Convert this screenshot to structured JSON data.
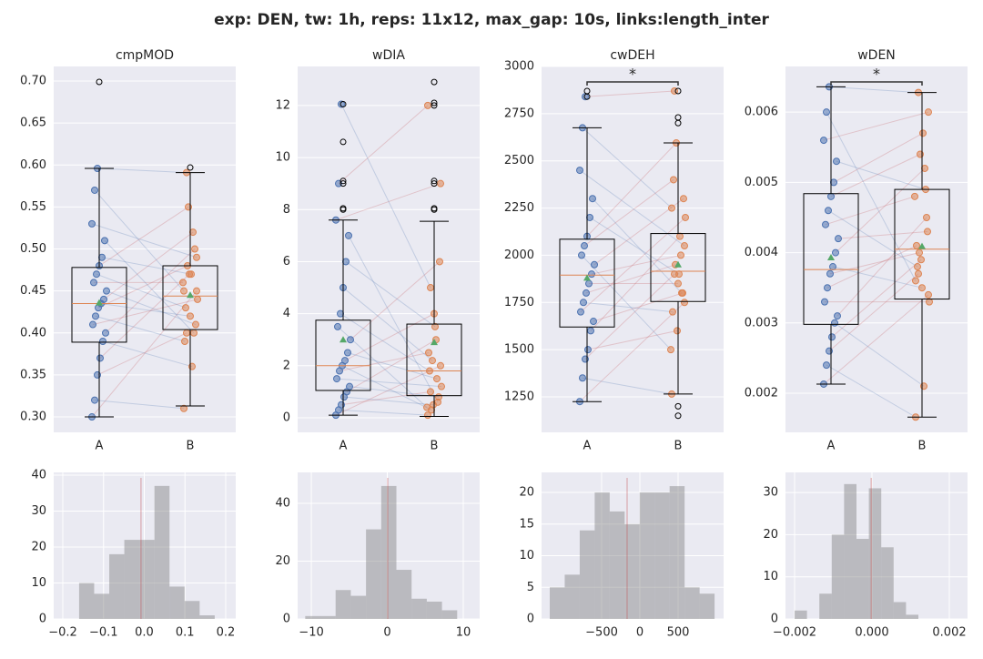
{
  "title": "exp: DEN, tw: 1h, reps: 11x12, max_gap: 10s, links:length_inter",
  "chart_data": [
    {
      "type": "box",
      "title": "cmpMOD",
      "categories": [
        "A",
        "B"
      ],
      "ylim": [
        0.2816,
        0.7174
      ],
      "yticks": [
        {
          "value": 0.3,
          "label": "0.30"
        },
        {
          "value": 0.35,
          "label": "0.35"
        },
        {
          "value": 0.4,
          "label": "0.40"
        },
        {
          "value": 0.45,
          "label": "0.45"
        },
        {
          "value": 0.5,
          "label": "0.50"
        },
        {
          "value": 0.55,
          "label": "0.55"
        },
        {
          "value": 0.6,
          "label": "0.60"
        },
        {
          "value": 0.65,
          "label": "0.65"
        },
        {
          "value": 0.7,
          "label": "0.70"
        }
      ],
      "boxes": [
        {
          "q1": 0.389,
          "median": 0.435,
          "q3": 0.478,
          "whislo": 0.3,
          "whishi": 0.596,
          "mean": 0.436,
          "outliers": [
            0.699
          ]
        },
        {
          "q1": 0.404,
          "median": 0.444,
          "q3": 0.48,
          "whislo": 0.313,
          "whishi": 0.591,
          "mean": 0.445,
          "outliers": [
            0.597
          ]
        }
      ],
      "series": [
        {
          "color": "#4c72b0",
          "values": [
            0.3,
            0.32,
            0.35,
            0.37,
            0.39,
            0.4,
            0.41,
            0.42,
            0.43,
            0.435,
            0.44,
            0.45,
            0.46,
            0.47,
            0.48,
            0.49,
            0.51,
            0.53,
            0.57,
            0.596
          ]
        },
        {
          "color": "#dd8452",
          "values": [
            0.45,
            0.31,
            0.4,
            0.47,
            0.36,
            0.5,
            0.44,
            0.39,
            0.48,
            0.42,
            0.52,
            0.41,
            0.46,
            0.43,
            0.55,
            0.47,
            0.4,
            0.49,
            0.45,
            0.591
          ]
        }
      ],
      "pair_colors": {
        "up": "#c44e52",
        "down": "#4c72b0"
      }
    },
    {
      "type": "box",
      "title": "wDIA",
      "categories": [
        "A",
        "B"
      ],
      "ylim": [
        -0.56,
        13.5
      ],
      "yticks": [
        0,
        2,
        4,
        6,
        8,
        10,
        12
      ],
      "boxes": [
        {
          "q1": 1.05,
          "median": 2.0,
          "q3": 3.75,
          "whislo": 0.1,
          "whishi": 7.6,
          "mean": 3.0,
          "outliers": [
            8,
            8.05,
            9,
            9.1,
            10.6,
            12.05
          ]
        },
        {
          "q1": 0.85,
          "median": 1.8,
          "q3": 3.6,
          "whislo": 0.05,
          "whishi": 7.55,
          "mean": 2.9,
          "outliers": [
            8,
            8.05,
            9,
            9.1,
            12,
            12.1,
            12.9
          ]
        }
      ],
      "series": [
        {
          "color": "#4c72b0",
          "values": [
            0.1,
            0.3,
            0.5,
            0.8,
            1.0,
            1.2,
            1.5,
            1.8,
            2.0,
            2.2,
            2.5,
            3.0,
            3.5,
            4.0,
            5.0,
            6.0,
            7.0,
            7.6,
            9.0,
            12.05
          ]
        },
        {
          "color": "#dd8452",
          "values": [
            2.0,
            0.1,
            1.0,
            0.5,
            3.0,
            0.8,
            1.2,
            2.5,
            0.3,
            4.0,
            1.5,
            6.0,
            0.4,
            1.8,
            2.2,
            3.5,
            0.6,
            9.0,
            12.0,
            5.0
          ]
        }
      ],
      "pair_colors": {
        "up": "#c44e52",
        "down": "#4c72b0"
      }
    },
    {
      "type": "box",
      "title": "cwDEH",
      "categories": [
        "A",
        "B"
      ],
      "significance": "*",
      "ylim": [
        1062,
        3000
      ],
      "yticks": [
        1250,
        1500,
        1750,
        2000,
        2250,
        2500,
        2750,
        3000
      ],
      "boxes": [
        {
          "q1": 1620,
          "median": 1895,
          "q3": 2085,
          "whislo": 1225,
          "whishi": 2675,
          "mean": 1880,
          "outliers": [
            2840,
            2870
          ]
        },
        {
          "q1": 1755,
          "median": 1915,
          "q3": 2115,
          "whislo": 1265,
          "whishi": 2595,
          "mean": 1950,
          "outliers": [
            2700,
            2730,
            2870,
            1200,
            1150
          ]
        }
      ],
      "series": [
        {
          "color": "#4c72b0",
          "values": [
            1225,
            1350,
            1450,
            1500,
            1600,
            1650,
            1700,
            1750,
            1800,
            1850,
            1900,
            1950,
            2000,
            2050,
            2100,
            2200,
            2300,
            2450,
            2675,
            2840
          ]
        },
        {
          "color": "#dd8452",
          "values": [
            1750,
            1265,
            1900,
            1600,
            2100,
            1800,
            2200,
            1700,
            1950,
            1850,
            2000,
            2300,
            1500,
            2400,
            2595,
            1900,
            1800,
            2050,
            2250,
            2870
          ]
        }
      ],
      "pair_colors": {
        "up": "#c44e52",
        "down": "#4c72b0"
      }
    },
    {
      "type": "box",
      "title": "wDEN",
      "categories": [
        "A",
        "B"
      ],
      "significance": "*",
      "ylim": [
        0.001443,
        0.00665
      ],
      "yticks": [
        0.002,
        0.003,
        0.004,
        0.005,
        0.006
      ],
      "boxes": [
        {
          "q1": 0.00298,
          "median": 0.00376,
          "q3": 0.00484,
          "whislo": 0.00213,
          "whishi": 0.00636,
          "mean": 0.00393,
          "outliers": []
        },
        {
          "q1": 0.00334,
          "median": 0.00405,
          "q3": 0.0049,
          "whislo": 0.00166,
          "whishi": 0.00628,
          "mean": 0.00409,
          "outliers": []
        }
      ],
      "series": [
        {
          "color": "#4c72b0",
          "values": [
            0.00213,
            0.0024,
            0.0026,
            0.0028,
            0.003,
            0.0031,
            0.0033,
            0.0035,
            0.0037,
            0.0038,
            0.004,
            0.0042,
            0.0044,
            0.0046,
            0.0048,
            0.005,
            0.0053,
            0.0056,
            0.006,
            0.00636
          ]
        },
        {
          "color": "#dd8452",
          "values": [
            0.0034,
            0.00166,
            0.0037,
            0.0039,
            0.0021,
            0.0045,
            0.0033,
            0.0041,
            0.004,
            0.0035,
            0.0052,
            0.0043,
            0.0048,
            0.0038,
            0.0054,
            0.0057,
            0.0049,
            0.006,
            0.0036,
            0.00628
          ]
        }
      ],
      "pair_colors": {
        "up": "#c44e52",
        "down": "#4c72b0"
      }
    },
    {
      "type": "histogram",
      "color": "#808080",
      "vline": -0.008,
      "vline_color": "#c44e52",
      "bins": [
        -0.16,
        -0.123,
        -0.086,
        -0.049,
        -0.012,
        0.025,
        0.062,
        0.099,
        0.136,
        0.173
      ],
      "counts": [
        10,
        7,
        18,
        22,
        22,
        37,
        9,
        5,
        1
      ],
      "xlim": [
        -0.2224,
        0.2246
      ],
      "xticks": [
        {
          "value": -0.2,
          "label": "−0.2"
        },
        {
          "value": -0.1,
          "label": "−0.1"
        },
        {
          "value": 0,
          "label": "0.0"
        },
        0.1,
        0.2
      ],
      "ylim": [
        0,
        40.76
      ],
      "yticks": [
        0,
        10,
        20,
        30,
        40
      ]
    },
    {
      "type": "histogram",
      "color": "#808080",
      "vline": 0.06,
      "vline_color": "#c44e52",
      "bins": [
        -10.8,
        -8.8,
        -6.8,
        -4.8,
        -2.8,
        -0.8,
        1.2,
        3.2,
        5.2,
        7.2,
        9.2
      ],
      "counts": [
        1,
        1,
        10,
        8,
        31,
        46,
        17,
        7,
        6,
        3
      ],
      "xlim": [
        -11.8,
        12.16
      ],
      "xticks": [
        {
          "value": -10,
          "label": "−10"
        },
        0,
        10
      ],
      "ylim": [
        0,
        50.7
      ],
      "yticks": [
        0,
        20,
        40
      ]
    },
    {
      "type": "histogram",
      "color": "#808080",
      "vline": -167,
      "vline_color": "#c44e52",
      "bins": [
        -1179,
        -983,
        -787,
        -591,
        -395,
        -199,
        -3,
        193,
        389,
        585,
        781,
        977
      ],
      "counts": [
        5,
        7,
        14,
        20,
        17,
        15,
        20,
        20,
        21,
        5,
        4
      ],
      "xlim": [
        -1286,
        1095
      ],
      "xticks": [
        {
          "value": -500,
          "label": "−500"
        },
        0,
        500
      ],
      "ylim": [
        0,
        23.17
      ],
      "yticks": [
        0,
        5,
        10,
        15,
        20
      ]
    },
    {
      "type": "histogram",
      "color": "#808080",
      "vline": -2e-05,
      "vline_color": "#c44e52",
      "bins": [
        -0.002,
        -0.00168,
        -0.00136,
        -0.00104,
        -0.00072,
        -0.0004,
        -8e-05,
        0.00024,
        0.00056,
        0.00088,
        0.0012
      ],
      "counts": [
        2,
        0,
        6,
        20,
        32,
        19,
        31,
        17,
        4,
        1
      ],
      "xlim": [
        -0.002235,
        0.00247
      ],
      "xticks": [
        {
          "value": -0.002,
          "label": "−0.002"
        },
        {
          "value": 0,
          "label": "0.000"
        },
        0.002
      ],
      "ylim": [
        0,
        34.77
      ],
      "yticks": [
        0,
        10,
        20,
        30
      ]
    }
  ]
}
